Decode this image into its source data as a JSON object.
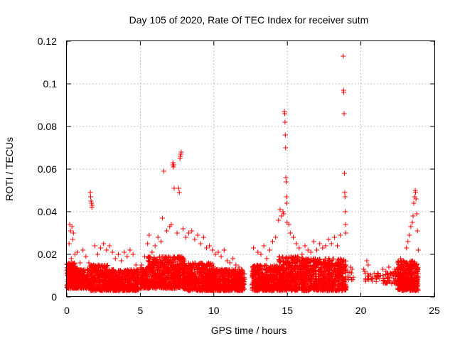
{
  "chart_data": {
    "type": "scatter",
    "title": "Day 105 of 2020, Rate Of TEC Index for receiver sutm",
    "xlabel": "GPS time / hours",
    "ylabel": "ROTI / TECUs",
    "xlim": [
      0,
      25
    ],
    "ylim": [
      0,
      0.12
    ],
    "x_ticks": [
      "0",
      "5",
      "10",
      "15",
      "20",
      "25"
    ],
    "y_ticks": [
      "0",
      "0.02",
      "0.04",
      "0.06",
      "0.08",
      "0.1",
      "0.12"
    ],
    "x_tick_values": [
      0,
      5,
      10,
      15,
      20,
      25
    ],
    "y_tick_values": [
      0,
      0.02,
      0.04,
      0.06,
      0.08,
      0.1,
      0.12
    ],
    "grid": true,
    "marker": "+",
    "color": "#ff0000",
    "series": [
      {
        "points": [
          [
            0.1,
            0.004
          ],
          [
            0.15,
            0.025
          ],
          [
            0.2,
            0.034
          ],
          [
            0.25,
            0.031
          ],
          [
            0.3,
            0.018
          ],
          [
            0.35,
            0.033
          ],
          [
            0.4,
            0.027
          ],
          [
            0.45,
            0.03
          ],
          [
            0.5,
            0.012
          ],
          [
            0.55,
            0.02
          ],
          [
            0.7,
            0.021
          ],
          [
            0.9,
            0.016
          ],
          [
            1.1,
            0.022
          ],
          [
            1.3,
            0.019
          ],
          [
            1.5,
            0.016
          ],
          [
            1.6,
            0.049
          ],
          [
            1.62,
            0.047
          ],
          [
            1.65,
            0.045
          ],
          [
            1.68,
            0.044
          ],
          [
            1.7,
            0.042
          ],
          [
            1.72,
            0.043
          ],
          [
            1.9,
            0.024
          ],
          [
            2.1,
            0.02
          ],
          [
            2.3,
            0.023
          ],
          [
            2.5,
            0.025
          ],
          [
            2.7,
            0.022
          ],
          [
            2.9,
            0.024
          ],
          [
            3.1,
            0.021
          ],
          [
            3.3,
            0.018
          ],
          [
            3.5,
            0.02
          ],
          [
            3.7,
            0.017
          ],
          [
            3.9,
            0.021
          ],
          [
            4.1,
            0.019
          ],
          [
            4.3,
            0.022
          ],
          [
            4.5,
            0.02
          ],
          [
            4.7,
            0.015
          ],
          [
            5.1,
            0.015
          ],
          [
            5.3,
            0.019
          ],
          [
            5.5,
            0.025
          ],
          [
            5.6,
            0.029
          ],
          [
            5.8,
            0.021
          ],
          [
            6.0,
            0.024
          ],
          [
            6.2,
            0.028
          ],
          [
            6.4,
            0.026
          ],
          [
            6.5,
            0.037
          ],
          [
            6.6,
            0.059
          ],
          [
            6.8,
            0.031
          ],
          [
            7.0,
            0.033
          ],
          [
            7.1,
            0.034
          ],
          [
            7.2,
            0.062
          ],
          [
            7.22,
            0.063
          ],
          [
            7.25,
            0.061
          ],
          [
            7.28,
            0.062
          ],
          [
            7.3,
            0.051
          ],
          [
            7.5,
            0.03
          ],
          [
            7.6,
            0.051
          ],
          [
            7.65,
            0.049
          ],
          [
            7.7,
            0.065
          ],
          [
            7.72,
            0.066
          ],
          [
            7.75,
            0.067
          ],
          [
            7.78,
            0.068
          ],
          [
            7.9,
            0.032
          ],
          [
            8.1,
            0.028
          ],
          [
            8.3,
            0.03
          ],
          [
            8.5,
            0.031
          ],
          [
            8.7,
            0.027
          ],
          [
            8.9,
            0.029
          ],
          [
            9.1,
            0.025
          ],
          [
            9.3,
            0.028
          ],
          [
            9.5,
            0.023
          ],
          [
            9.7,
            0.024
          ],
          [
            9.9,
            0.022
          ],
          [
            10.1,
            0.02
          ],
          [
            10.3,
            0.021
          ],
          [
            10.5,
            0.019
          ],
          [
            10.7,
            0.022
          ],
          [
            10.9,
            0.017
          ],
          [
            11.1,
            0.016
          ],
          [
            11.3,
            0.018
          ],
          [
            11.5,
            0.015
          ],
          [
            11.7,
            0.014
          ],
          [
            11.9,
            0.01
          ],
          [
            12.7,
            0.023
          ],
          [
            13.0,
            0.021
          ],
          [
            13.2,
            0.02
          ],
          [
            13.4,
            0.024
          ],
          [
            13.6,
            0.018
          ],
          [
            13.8,
            0.022
          ],
          [
            14.0,
            0.026
          ],
          [
            14.2,
            0.028
          ],
          [
            14.4,
            0.036
          ],
          [
            14.5,
            0.041
          ],
          [
            14.6,
            0.038
          ],
          [
            14.7,
            0.04
          ],
          [
            14.75,
            0.039
          ],
          [
            14.8,
            0.087
          ],
          [
            14.82,
            0.086
          ],
          [
            14.84,
            0.082
          ],
          [
            14.86,
            0.076
          ],
          [
            14.88,
            0.07
          ],
          [
            14.9,
            0.056
          ],
          [
            14.92,
            0.054
          ],
          [
            14.94,
            0.047
          ],
          [
            14.96,
            0.044
          ],
          [
            14.98,
            0.035
          ],
          [
            15.1,
            0.034
          ],
          [
            15.2,
            0.03
          ],
          [
            15.4,
            0.028
          ],
          [
            15.6,
            0.025
          ],
          [
            15.8,
            0.023
          ],
          [
            16.0,
            0.02
          ],
          [
            16.2,
            0.024
          ],
          [
            16.4,
            0.022
          ],
          [
            16.6,
            0.021
          ],
          [
            16.8,
            0.026
          ],
          [
            17.0,
            0.022
          ],
          [
            17.2,
            0.025
          ],
          [
            17.4,
            0.023
          ],
          [
            17.6,
            0.024
          ],
          [
            17.8,
            0.027
          ],
          [
            18.0,
            0.025
          ],
          [
            18.2,
            0.028
          ],
          [
            18.4,
            0.024
          ],
          [
            18.6,
            0.029
          ],
          [
            18.8,
            0.113
          ],
          [
            18.82,
            0.097
          ],
          [
            18.84,
            0.096
          ],
          [
            18.86,
            0.086
          ],
          [
            18.88,
            0.058
          ],
          [
            18.9,
            0.049
          ],
          [
            18.92,
            0.047
          ],
          [
            18.94,
            0.04
          ],
          [
            18.96,
            0.034
          ],
          [
            18.98,
            0.03
          ],
          [
            19.3,
            0.014
          ],
          [
            19.4,
            0.013
          ],
          [
            20.2,
            0.013
          ],
          [
            20.3,
            0.011
          ],
          [
            20.4,
            0.017
          ],
          [
            20.5,
            0.015
          ],
          [
            20.9,
            0.011
          ],
          [
            21.1,
            0.01
          ],
          [
            21.5,
            0.013
          ],
          [
            21.7,
            0.012
          ],
          [
            21.9,
            0.014
          ],
          [
            22.1,
            0.011
          ],
          [
            22.3,
            0.013
          ],
          [
            22.5,
            0.016
          ],
          [
            22.7,
            0.018
          ],
          [
            22.9,
            0.017
          ],
          [
            23.1,
            0.023
          ],
          [
            23.2,
            0.026
          ],
          [
            23.3,
            0.029
          ],
          [
            23.4,
            0.033
          ],
          [
            23.5,
            0.035
          ],
          [
            23.55,
            0.038
          ],
          [
            23.6,
            0.044
          ],
          [
            23.65,
            0.047
          ],
          [
            23.7,
            0.05
          ],
          [
            23.72,
            0.049
          ],
          [
            23.75,
            0.046
          ],
          [
            23.8,
            0.039
          ],
          [
            23.85,
            0.031
          ],
          [
            23.9,
            0.022
          ]
        ]
      }
    ],
    "bands": [
      [
        0.0,
        0.6,
        0.004,
        0.016,
        240
      ],
      [
        0.6,
        1.55,
        0.004,
        0.013,
        260
      ],
      [
        1.55,
        2.8,
        0.003,
        0.015,
        330
      ],
      [
        2.8,
        4.9,
        0.003,
        0.013,
        520
      ],
      [
        5.0,
        5.5,
        0.004,
        0.014,
        120
      ],
      [
        5.5,
        8.0,
        0.004,
        0.019,
        650
      ],
      [
        8.0,
        10.0,
        0.003,
        0.016,
        520
      ],
      [
        10.0,
        12.1,
        0.003,
        0.013,
        520
      ],
      [
        12.6,
        14.4,
        0.003,
        0.015,
        460
      ],
      [
        14.4,
        16.2,
        0.003,
        0.019,
        520
      ],
      [
        16.2,
        19.0,
        0.003,
        0.018,
        700
      ],
      [
        19.1,
        19.5,
        0.008,
        0.012,
        10
      ],
      [
        20.2,
        21.4,
        0.007,
        0.012,
        24
      ],
      [
        21.5,
        22.5,
        0.006,
        0.012,
        60
      ],
      [
        22.5,
        23.9,
        0.003,
        0.017,
        420
      ]
    ]
  }
}
